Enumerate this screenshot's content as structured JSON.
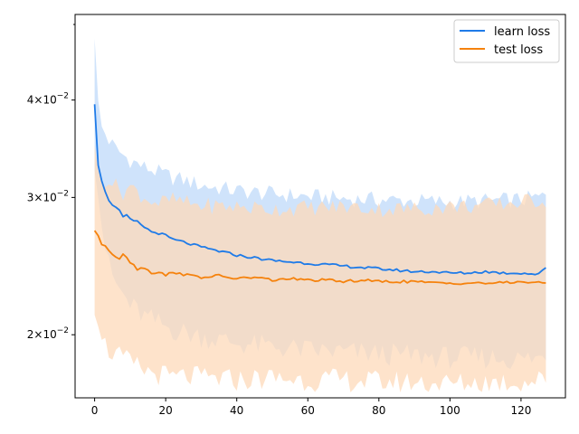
{
  "chart_data": {
    "type": "line",
    "xlabel": "",
    "ylabel": "",
    "title": "",
    "xlim": [
      -5.5,
      132.5
    ],
    "ylim": [
      0.0166,
      0.0515
    ],
    "yscale": "log",
    "grid": false,
    "legend_position": "top-right",
    "x_ticks": [
      0,
      20,
      40,
      60,
      80,
      100,
      120
    ],
    "x_tick_labels": [
      "0",
      "20",
      "40",
      "60",
      "80",
      "100",
      "120"
    ],
    "y_major_ticks": [
      0.02,
      0.03,
      0.04
    ],
    "y_tick_labels": [
      {
        "mantissa": "2",
        "exp": "-2"
      },
      {
        "mantissa": "3",
        "exp": "-2"
      },
      {
        "mantissa": "4",
        "exp": "-2"
      }
    ],
    "y_minor_ticks": [
      0.05
    ],
    "tick_base": "10",
    "tick_times": "×",
    "series": [
      {
        "name": "learn loss",
        "color": "#1f7be8",
        "band_color": "#cfe3fb",
        "x_end": 127,
        "mean_points": [
          [
            0,
            0.0395
          ],
          [
            1,
            0.033
          ],
          [
            2,
            0.0315
          ],
          [
            3,
            0.0305
          ],
          [
            4,
            0.0298
          ],
          [
            5,
            0.0294
          ],
          [
            6,
            0.0291
          ],
          [
            7,
            0.0288
          ],
          [
            8,
            0.0283
          ],
          [
            9,
            0.0284
          ],
          [
            10,
            0.0281
          ],
          [
            12,
            0.0279
          ],
          [
            14,
            0.0275
          ],
          [
            16,
            0.0271
          ],
          [
            18,
            0.027
          ],
          [
            20,
            0.0268
          ],
          [
            22,
            0.0265
          ],
          [
            25,
            0.0263
          ],
          [
            30,
            0.0259
          ],
          [
            35,
            0.0256
          ],
          [
            40,
            0.0253
          ],
          [
            45,
            0.0251
          ],
          [
            50,
            0.0249
          ],
          [
            55,
            0.0248
          ],
          [
            60,
            0.0247
          ],
          [
            65,
            0.0246
          ],
          [
            70,
            0.0245
          ],
          [
            75,
            0.0244
          ],
          [
            80,
            0.0243
          ],
          [
            85,
            0.0242
          ],
          [
            90,
            0.0241
          ],
          [
            95,
            0.0241
          ],
          [
            100,
            0.024
          ],
          [
            105,
            0.024
          ],
          [
            110,
            0.0241
          ],
          [
            115,
            0.024
          ],
          [
            120,
            0.024
          ],
          [
            125,
            0.0239
          ],
          [
            127,
            0.0244
          ]
        ],
        "band_upper": [
          [
            0,
            0.048
          ],
          [
            1,
            0.04
          ],
          [
            2,
            0.037
          ],
          [
            4,
            0.0355
          ],
          [
            6,
            0.0346
          ],
          [
            8,
            0.034
          ],
          [
            10,
            0.0335
          ],
          [
            14,
            0.0328
          ],
          [
            18,
            0.0323
          ],
          [
            22,
            0.0318
          ],
          [
            26,
            0.0315
          ],
          [
            30,
            0.0311
          ],
          [
            40,
            0.0306
          ],
          [
            50,
            0.0303
          ],
          [
            60,
            0.0301
          ],
          [
            70,
            0.0299
          ],
          [
            80,
            0.0298
          ],
          [
            90,
            0.0297
          ],
          [
            100,
            0.0296
          ],
          [
            110,
            0.0297
          ],
          [
            120,
            0.0298
          ],
          [
            127,
            0.0301
          ]
        ],
        "band_lower": [
          [
            0,
            0.0325
          ],
          [
            1,
            0.03
          ],
          [
            2,
            0.0275
          ],
          [
            4,
            0.0245
          ],
          [
            6,
            0.0232
          ],
          [
            8,
            0.0225
          ],
          [
            10,
            0.0218
          ],
          [
            14,
            0.0211
          ],
          [
            18,
            0.0207
          ],
          [
            22,
            0.0203
          ],
          [
            26,
            0.0201
          ],
          [
            30,
            0.0199
          ],
          [
            40,
            0.0195
          ],
          [
            50,
            0.0193
          ],
          [
            60,
            0.0191
          ],
          [
            70,
            0.019
          ],
          [
            80,
            0.0189
          ],
          [
            90,
            0.0188
          ],
          [
            100,
            0.0187
          ],
          [
            110,
            0.0187
          ],
          [
            120,
            0.0186
          ],
          [
            127,
            0.0187
          ]
        ]
      },
      {
        "name": "test loss",
        "color": "#f5820d",
        "band_color": "#fdd9b9",
        "x_end": 127,
        "mean_points": [
          [
            0,
            0.0272
          ],
          [
            1,
            0.0268
          ],
          [
            2,
            0.0261
          ],
          [
            3,
            0.026
          ],
          [
            4,
            0.0257
          ],
          [
            5,
            0.0254
          ],
          [
            6,
            0.0252
          ],
          [
            7,
            0.0251
          ],
          [
            8,
            0.0254
          ],
          [
            9,
            0.0252
          ],
          [
            10,
            0.0248
          ],
          [
            12,
            0.0243
          ],
          [
            14,
            0.0244
          ],
          [
            16,
            0.024
          ],
          [
            18,
            0.0241
          ],
          [
            20,
            0.0238
          ],
          [
            22,
            0.0241
          ],
          [
            25,
            0.0239
          ],
          [
            30,
            0.0237
          ],
          [
            35,
            0.0238
          ],
          [
            40,
            0.0236
          ],
          [
            45,
            0.0237
          ],
          [
            50,
            0.0235
          ],
          [
            55,
            0.0236
          ],
          [
            60,
            0.0235
          ],
          [
            65,
            0.0235
          ],
          [
            70,
            0.0234
          ],
          [
            75,
            0.0235
          ],
          [
            80,
            0.0234
          ],
          [
            85,
            0.0234
          ],
          [
            90,
            0.0234
          ],
          [
            95,
            0.0233
          ],
          [
            100,
            0.0233
          ],
          [
            105,
            0.0233
          ],
          [
            110,
            0.0233
          ],
          [
            115,
            0.0233
          ],
          [
            120,
            0.0234
          ],
          [
            125,
            0.0233
          ],
          [
            127,
            0.0233
          ]
        ],
        "band_upper": [
          [
            0,
            0.035
          ],
          [
            1,
            0.0325
          ],
          [
            2,
            0.0315
          ],
          [
            4,
            0.0318
          ],
          [
            6,
            0.031
          ],
          [
            8,
            0.0305
          ],
          [
            10,
            0.031
          ],
          [
            14,
            0.03
          ],
          [
            18,
            0.0295
          ],
          [
            22,
            0.0298
          ],
          [
            26,
            0.0295
          ],
          [
            30,
            0.0293
          ],
          [
            40,
            0.0292
          ],
          [
            50,
            0.029
          ],
          [
            60,
            0.0291
          ],
          [
            70,
            0.0292
          ],
          [
            80,
            0.029
          ],
          [
            90,
            0.029
          ],
          [
            100,
            0.0292
          ],
          [
            110,
            0.0293
          ],
          [
            120,
            0.0296
          ],
          [
            127,
            0.0298
          ]
        ],
        "band_lower": [
          [
            0,
            0.0212
          ],
          [
            1,
            0.0205
          ],
          [
            2,
            0.0197
          ],
          [
            4,
            0.0191
          ],
          [
            6,
            0.0189
          ],
          [
            8,
            0.0186
          ],
          [
            10,
            0.0184
          ],
          [
            14,
            0.018
          ],
          [
            18,
            0.0178
          ],
          [
            22,
            0.0176
          ],
          [
            26,
            0.0177
          ],
          [
            30,
            0.0176
          ],
          [
            40,
            0.0175
          ],
          [
            50,
            0.0176
          ],
          [
            60,
            0.0175
          ],
          [
            70,
            0.0175
          ],
          [
            80,
            0.0174
          ],
          [
            90,
            0.0174
          ],
          [
            100,
            0.0173
          ],
          [
            110,
            0.0174
          ],
          [
            120,
            0.0174
          ],
          [
            127,
            0.0175
          ]
        ]
      }
    ]
  }
}
